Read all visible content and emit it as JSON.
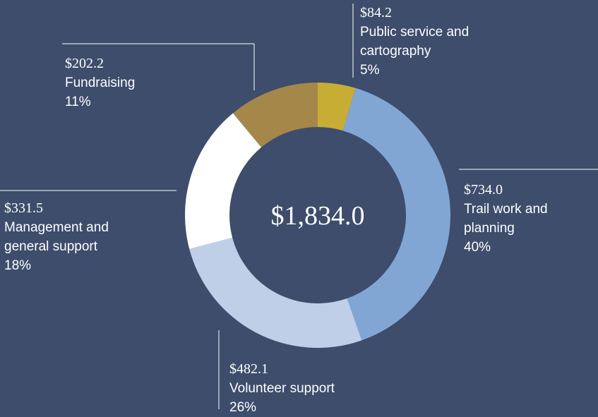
{
  "chart_data": {
    "type": "donut",
    "categories": [
      "Public service and cartography",
      "Trail work and planning",
      "Volunteer support",
      "Management and general support",
      "Fundraising"
    ],
    "values": [
      84.2,
      734.0,
      482.1,
      331.5,
      202.2
    ],
    "value_labels": [
      "$84.2",
      "$734.0",
      "$482.1",
      "$331.5",
      "$202.2"
    ],
    "percents": [
      5,
      40,
      26,
      18,
      11
    ],
    "percent_labels": [
      "5%",
      "40%",
      "26%",
      "18%",
      "11%"
    ],
    "colors": [
      "#c8ad35",
      "#82a6d4",
      "#c0cfe8",
      "#ffffff",
      "#a5874a"
    ],
    "total": 1834.0,
    "total_label": "$1,834.0"
  }
}
